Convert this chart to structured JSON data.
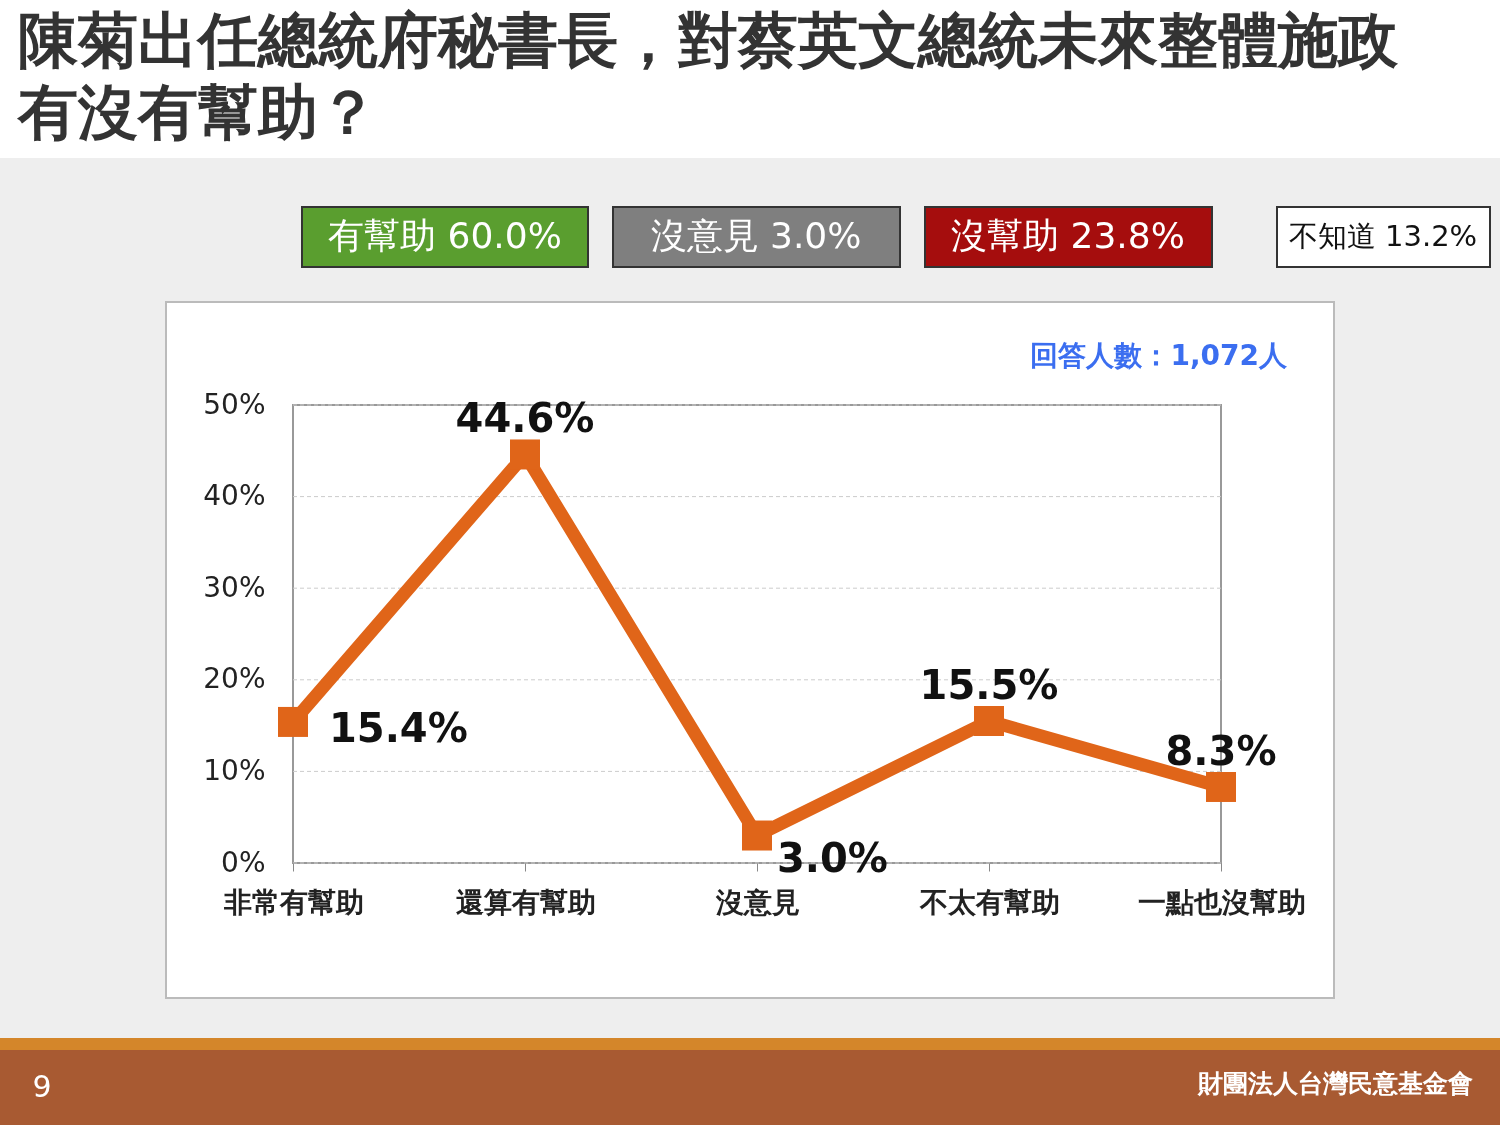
{
  "chart_data": {
    "type": "line",
    "title": "陳菊出任總統府秘書長，對蔡英文總統未來整體施政有沒有幫助？",
    "categories": [
      "非常有幫助",
      "還算有幫助",
      "沒意見",
      "不太有幫助",
      "一點也沒幫助"
    ],
    "series": [
      {
        "color": "#e06519",
        "values": [
          15.4,
          44.6,
          3.0,
          15.5,
          8.3
        ],
        "value_labels": [
          "15.4%",
          "44.6%",
          "3.0%",
          "15.5%",
          "8.3%"
        ]
      }
    ],
    "ylim": [
      0,
      50
    ],
    "yticks": [
      {
        "value": 0,
        "label": "0%"
      },
      {
        "value": 10,
        "label": "10%"
      },
      {
        "value": 20,
        "label": "20%"
      },
      {
        "value": 30,
        "label": "30%"
      },
      {
        "value": 40,
        "label": "40%"
      },
      {
        "value": 50,
        "label": "50%"
      }
    ],
    "grid": "y",
    "legend": false,
    "marker": "square",
    "line_style": "solid",
    "annotations": [
      "有幫助 60.0%",
      "沒意見 3.0%",
      "沒幫助 23.8%",
      "不知道 13.2%",
      "回答人數：1,072人",
      "9",
      "財團法人台灣民意基金會"
    ]
  }
}
